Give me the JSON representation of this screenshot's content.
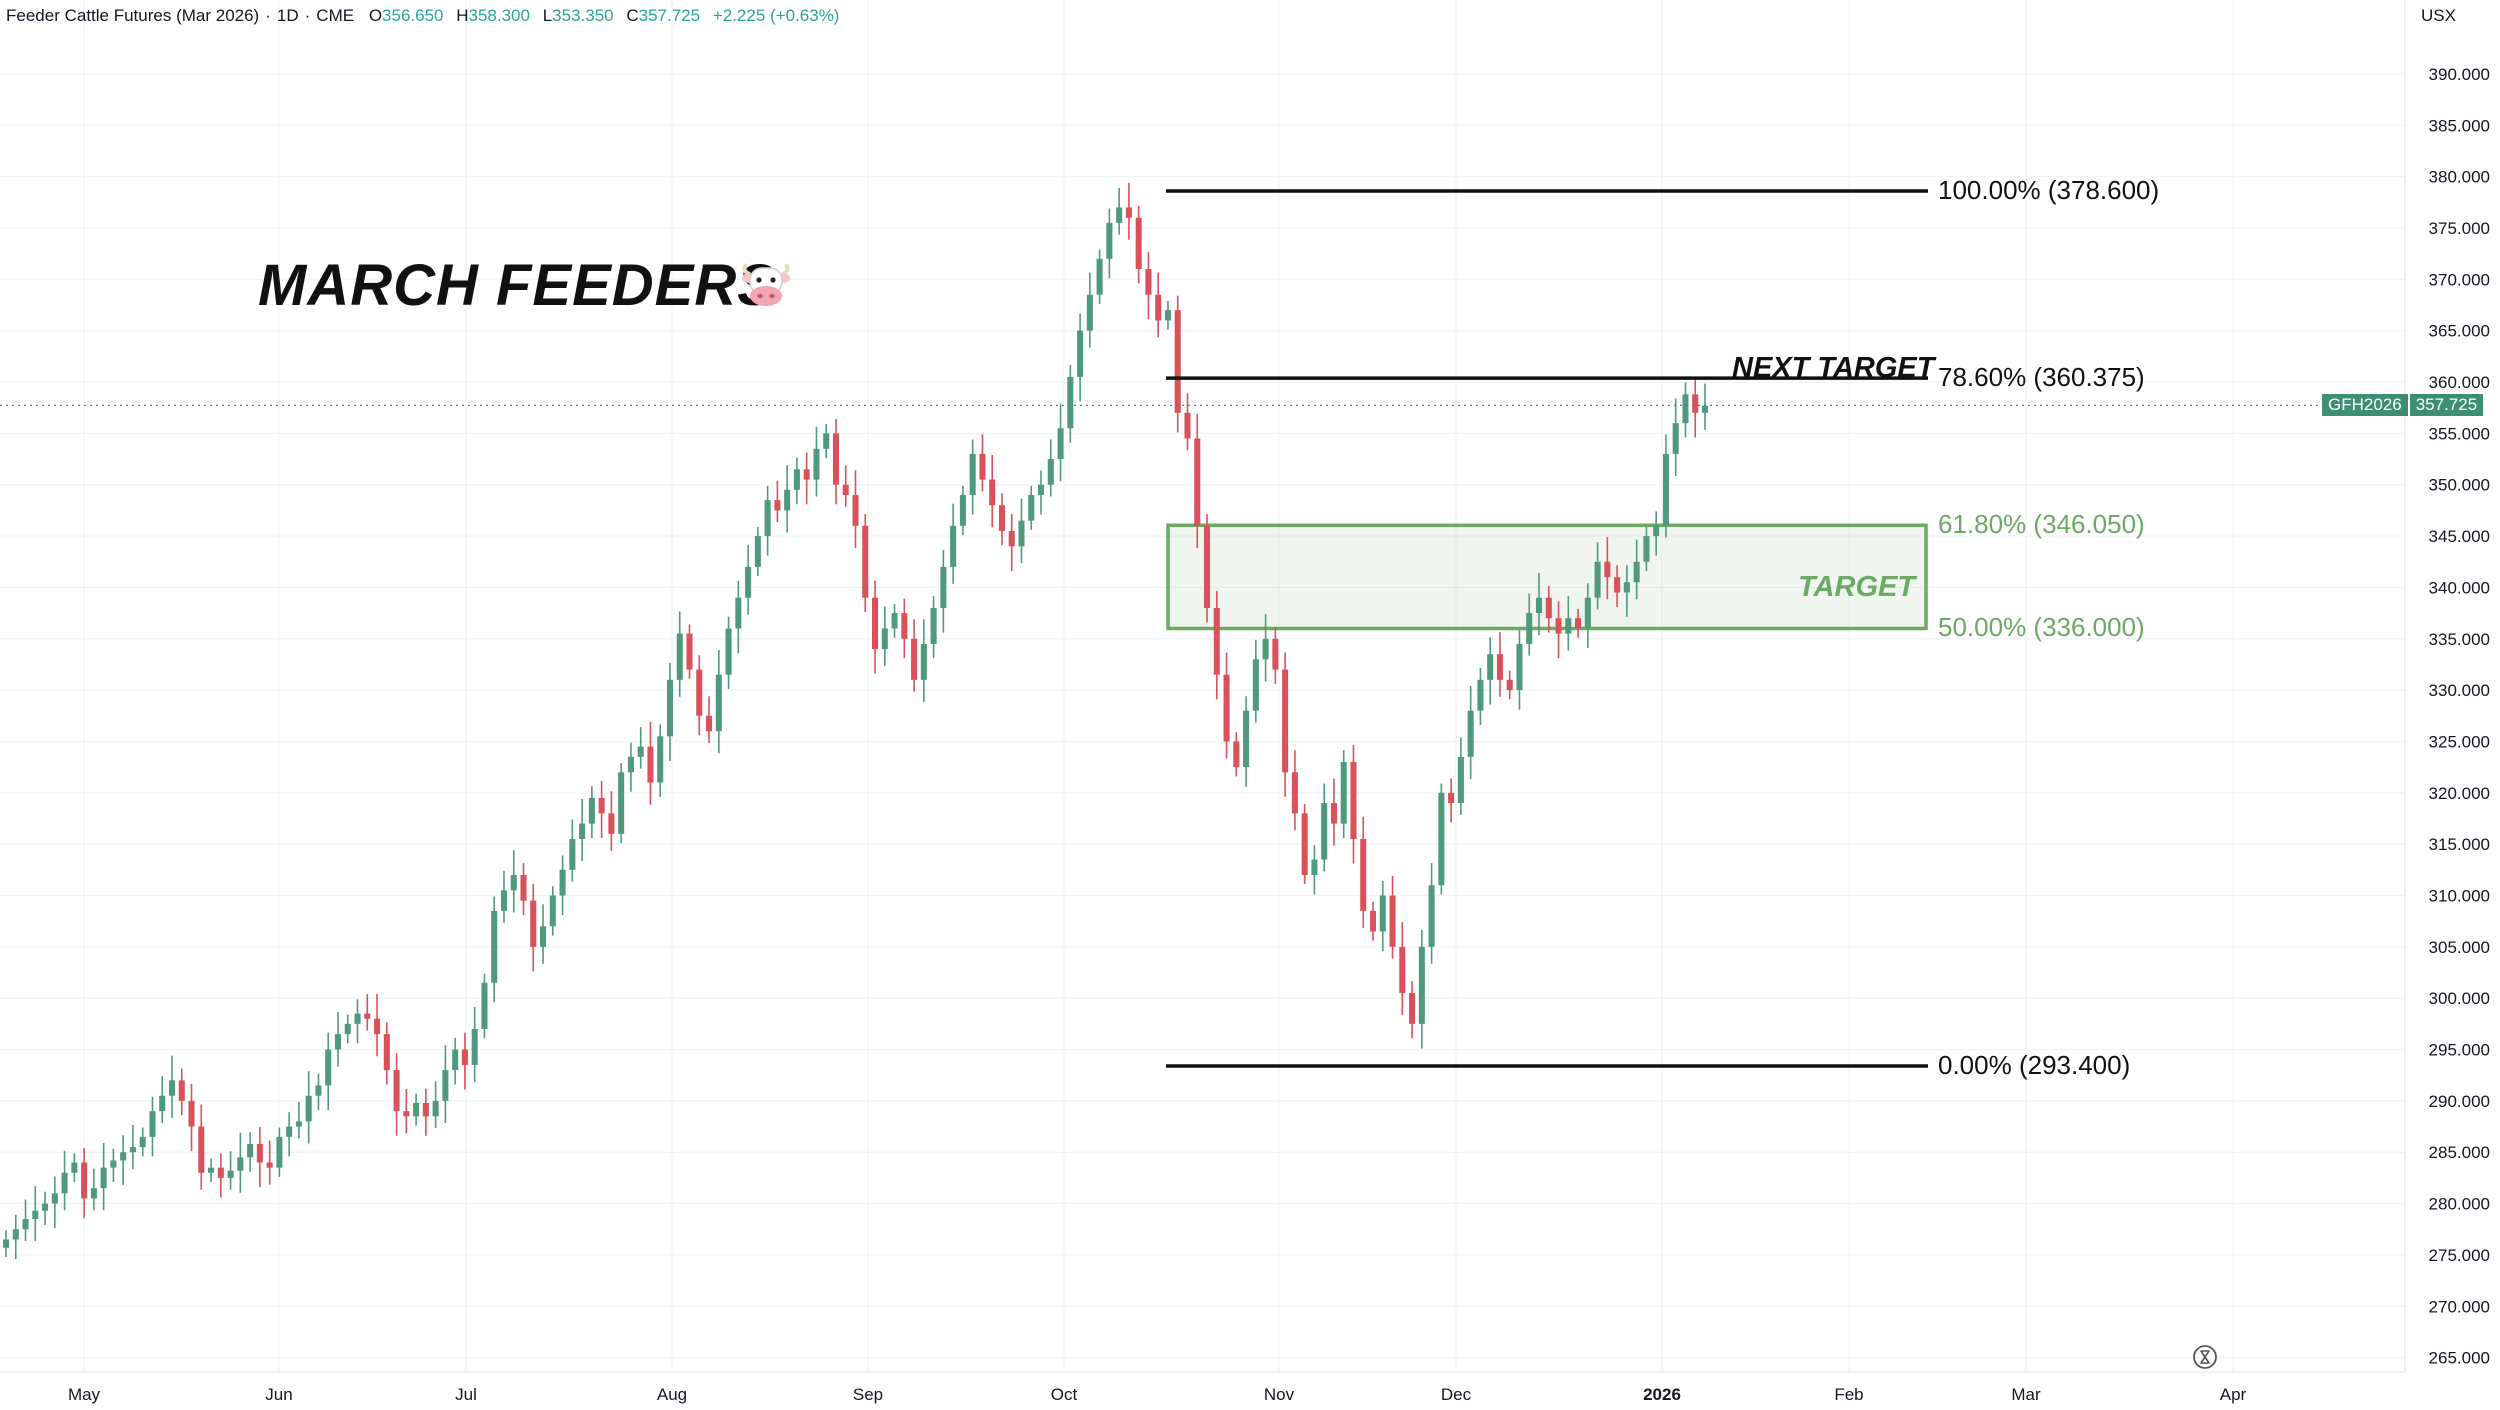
{
  "header": {
    "title": "Feeder Cattle Futures (Mar 2026)",
    "interval": "1D",
    "exchange": "CME",
    "open_label": "O",
    "open": "356.650",
    "high_label": "H",
    "high": "358.300",
    "low_label": "L",
    "low": "353.350",
    "close_label": "C",
    "close": "357.725",
    "change": "+2.225 (+0.63%)"
  },
  "currency": "USX",
  "annotation_title": "MARCH FEEDERS",
  "icons": {
    "title_emoji": "cow-face-icon",
    "reset": "hourglass-reset-icon"
  },
  "colors": {
    "up": "#4f9a7e",
    "down": "#d9515a",
    "fib_line": "#111111",
    "zone": "#6aaa64",
    "price_tag": "#3d8f73"
  },
  "price_tag": {
    "symbol": "GFH2026",
    "price": "357.725"
  },
  "fib_levels": [
    {
      "pct": "100.00%",
      "value": 378.6,
      "label": "100.00% (378.600)",
      "color": "black"
    },
    {
      "pct": "78.60%",
      "value": 360.375,
      "label": "78.60% (360.375)",
      "color": "black"
    },
    {
      "pct": "61.80%",
      "value": 346.05,
      "label": "61.80% (346.050)",
      "color": "green"
    },
    {
      "pct": "50.00%",
      "value": 336.0,
      "label": "50.00% (336.000)",
      "color": "green"
    },
    {
      "pct": "0.00%",
      "value": 293.4,
      "label": "0.00% (293.400)",
      "color": "black"
    }
  ],
  "next_target_label": "NEXT TARGET",
  "target_label": "TARGET",
  "chart_data": {
    "type": "candlestick",
    "y_axis_ticks": [
      "390.000",
      "385.000",
      "380.000",
      "375.000",
      "370.000",
      "365.000",
      "360.000",
      "355.000",
      "350.000",
      "345.000",
      "340.000",
      "335.000",
      "330.000",
      "325.000",
      "320.000",
      "315.000",
      "310.000",
      "305.000",
      "300.000",
      "295.000",
      "290.000",
      "285.000",
      "280.000",
      "275.000",
      "270.000",
      "265.000"
    ],
    "ylim": [
      263.6,
      393.5
    ],
    "x_axis_ticks": [
      {
        "label": "May",
        "bold": false
      },
      {
        "label": "Jun",
        "bold": false
      },
      {
        "label": "Jul",
        "bold": false
      },
      {
        "label": "Aug",
        "bold": false
      },
      {
        "label": "Sep",
        "bold": false
      },
      {
        "label": "Oct",
        "bold": false
      },
      {
        "label": "Nov",
        "bold": false
      },
      {
        "label": "Dec",
        "bold": false
      },
      {
        "label": "2026",
        "bold": true
      },
      {
        "label": "Feb",
        "bold": false
      },
      {
        "label": "Mar",
        "bold": false
      },
      {
        "label": "Apr",
        "bold": false
      }
    ],
    "last_price": 357.725,
    "grid": true,
    "candles_close": [
      276.5,
      277.5,
      278.5,
      279.3,
      280.0,
      281.0,
      283.0,
      284.0,
      280.5,
      281.5,
      283.5,
      284.2,
      285.0,
      285.5,
      286.5,
      289.0,
      290.5,
      292.0,
      290.0,
      287.5,
      283.0,
      283.5,
      282.5,
      283.2,
      284.5,
      285.8,
      284.0,
      283.5,
      286.5,
      287.5,
      288.0,
      290.5,
      291.5,
      295.0,
      296.5,
      297.5,
      298.5,
      298.0,
      296.5,
      293.0,
      289.0,
      288.5,
      289.8,
      288.5,
      290.0,
      293.0,
      295.0,
      293.5,
      297.0,
      301.5,
      308.5,
      310.5,
      312.0,
      309.5,
      305.0,
      307.0,
      310.0,
      312.5,
      315.5,
      317.0,
      319.5,
      318.0,
      316.0,
      322.0,
      323.5,
      324.5,
      321.0,
      325.5,
      331.0,
      335.5,
      332.0,
      327.5,
      326.0,
      331.5,
      336.0,
      339.0,
      342.0,
      345.0,
      348.5,
      347.5,
      349.5,
      351.5,
      350.5,
      353.5,
      355.0,
      350.0,
      349.0,
      346.0,
      339.0,
      334.0,
      336.0,
      337.5,
      335.0,
      331.0,
      334.5,
      338.0,
      342.0,
      346.0,
      349.0,
      353.0,
      350.5,
      348.0,
      345.5,
      344.0,
      346.5,
      349.0,
      350.0,
      352.5,
      355.5,
      360.5,
      365.0,
      368.5,
      372.0,
      375.5,
      377.0,
      376.0,
      371.0,
      368.5,
      366.0,
      367.0,
      357.0,
      354.5,
      346.0,
      338.0,
      331.5,
      325.0,
      322.5,
      328.0,
      333.0,
      335.0,
      332.0,
      322.0,
      318.0,
      312.0,
      313.5,
      319.0,
      317.0,
      323.0,
      315.5,
      308.5,
      306.5,
      310.0,
      305.0,
      300.5,
      297.5,
      305.0,
      311.0,
      320.0,
      319.0,
      323.5,
      328.0,
      331.0,
      333.5,
      331.0,
      330.0,
      334.5,
      337.5,
      339.0,
      337.0,
      335.5,
      337.0,
      336.0,
      339.0,
      342.5,
      341.0,
      339.5,
      340.5,
      342.5,
      345.0,
      346.0,
      353.0,
      356.0,
      358.8,
      357.0,
      357.7
    ]
  }
}
